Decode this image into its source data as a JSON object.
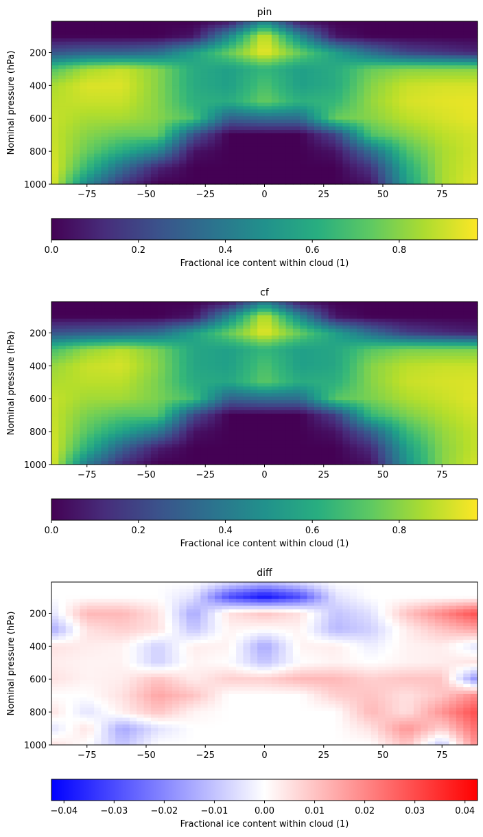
{
  "figure": {
    "chart_data": [
      {
        "type": "heatmap",
        "title": "pin",
        "xlabel": "",
        "ylabel": "Nominal pressure (hPa)",
        "xlim": [
          -90,
          90
        ],
        "ylim": [
          1000,
          10
        ],
        "y_inverted": true,
        "x_ticks": [
          -75,
          -50,
          -25,
          0,
          25,
          50,
          75
        ],
        "x_tick_labels": [
          "−75",
          "−50",
          "−25",
          "0",
          "25",
          "50",
          "75"
        ],
        "y_ticks": [
          200,
          400,
          600,
          800,
          1000
        ],
        "y_tick_labels": [
          "200",
          "400",
          "600",
          "800",
          "1000"
        ],
        "colormap": "viridis",
        "colorbar": {
          "label": "Fractional ice content within cloud (1)",
          "range": [
            0,
            0.98
          ],
          "ticks": [
            0.0,
            0.2,
            0.4,
            0.6,
            0.8
          ],
          "tick_labels": [
            "0.0",
            "0.2",
            "0.4",
            "0.6",
            "0.8"
          ],
          "orientation": "horizontal",
          "position": "bottom"
        },
        "x": [
          -90,
          -75,
          -60,
          -45,
          -30,
          -15,
          0,
          15,
          30,
          45,
          60,
          75,
          90
        ],
        "y": [
          10,
          100,
          200,
          300,
          400,
          500,
          600,
          700,
          800,
          900,
          1000
        ],
        "z": [
          [
            0.0,
            0.0,
            0.0,
            0.0,
            0.0,
            0.05,
            0.45,
            0.05,
            0.0,
            0.0,
            0.0,
            0.0,
            0.0
          ],
          [
            0.0,
            0.0,
            0.0,
            0.0,
            0.05,
            0.45,
            0.92,
            0.45,
            0.05,
            0.0,
            0.0,
            0.0,
            0.0
          ],
          [
            0.25,
            0.3,
            0.3,
            0.35,
            0.55,
            0.75,
            0.96,
            0.75,
            0.55,
            0.35,
            0.2,
            0.15,
            0.1
          ],
          [
            0.7,
            0.85,
            0.9,
            0.8,
            0.6,
            0.55,
            0.65,
            0.55,
            0.6,
            0.75,
            0.8,
            0.8,
            0.8
          ],
          [
            0.85,
            0.93,
            0.93,
            0.8,
            0.6,
            0.55,
            0.7,
            0.55,
            0.6,
            0.8,
            0.9,
            0.92,
            0.92
          ],
          [
            0.88,
            0.9,
            0.9,
            0.8,
            0.62,
            0.6,
            0.75,
            0.62,
            0.65,
            0.82,
            0.92,
            0.94,
            0.95
          ],
          [
            0.9,
            0.85,
            0.85,
            0.8,
            0.7,
            0.3,
            0.35,
            0.35,
            0.75,
            0.8,
            0.88,
            0.92,
            0.95
          ],
          [
            0.9,
            0.8,
            0.75,
            0.75,
            0.25,
            0.0,
            0.0,
            0.0,
            0.2,
            0.7,
            0.8,
            0.88,
            0.92
          ],
          [
            0.92,
            0.75,
            0.6,
            0.45,
            0.05,
            0.0,
            0.0,
            0.0,
            0.05,
            0.35,
            0.7,
            0.85,
            0.92
          ],
          [
            0.95,
            0.65,
            0.35,
            0.1,
            0.0,
            0.0,
            0.0,
            0.0,
            0.0,
            0.15,
            0.6,
            0.85,
            0.93
          ],
          [
            0.95,
            0.45,
            0.15,
            0.0,
            0.0,
            0.0,
            0.0,
            0.0,
            0.0,
            0.05,
            0.55,
            0.85,
            0.95
          ]
        ]
      },
      {
        "type": "heatmap",
        "title": "cf",
        "xlabel": "",
        "ylabel": "Nominal pressure (hPa)",
        "xlim": [
          -90,
          90
        ],
        "ylim": [
          1000,
          10
        ],
        "y_inverted": true,
        "x_ticks": [
          -75,
          -50,
          -25,
          0,
          25,
          50,
          75
        ],
        "x_tick_labels": [
          "−75",
          "−50",
          "−25",
          "0",
          "25",
          "50",
          "75"
        ],
        "y_ticks": [
          200,
          400,
          600,
          800,
          1000
        ],
        "y_tick_labels": [
          "200",
          "400",
          "600",
          "800",
          "1000"
        ],
        "colormap": "viridis",
        "colorbar": {
          "label": "Fractional ice content within cloud (1)",
          "range": [
            0,
            0.98
          ],
          "ticks": [
            0.0,
            0.2,
            0.4,
            0.6,
            0.8
          ],
          "tick_labels": [
            "0.0",
            "0.2",
            "0.4",
            "0.6",
            "0.8"
          ],
          "orientation": "horizontal",
          "position": "bottom"
        },
        "x": [
          -90,
          -75,
          -60,
          -45,
          -30,
          -15,
          0,
          15,
          30,
          45,
          60,
          75,
          90
        ],
        "y": [
          10,
          100,
          200,
          300,
          400,
          500,
          600,
          700,
          800,
          900,
          1000
        ],
        "z": [
          [
            0.0,
            0.0,
            0.0,
            0.0,
            0.0,
            0.05,
            0.4,
            0.05,
            0.0,
            0.0,
            0.0,
            0.0,
            0.0
          ],
          [
            0.0,
            0.0,
            0.0,
            0.0,
            0.05,
            0.45,
            0.9,
            0.45,
            0.05,
            0.0,
            0.0,
            0.0,
            0.0
          ],
          [
            0.25,
            0.28,
            0.3,
            0.35,
            0.55,
            0.75,
            0.95,
            0.75,
            0.55,
            0.35,
            0.18,
            0.12,
            0.08
          ],
          [
            0.68,
            0.82,
            0.88,
            0.78,
            0.58,
            0.55,
            0.65,
            0.55,
            0.58,
            0.72,
            0.78,
            0.78,
            0.78
          ],
          [
            0.82,
            0.9,
            0.92,
            0.8,
            0.58,
            0.55,
            0.7,
            0.55,
            0.58,
            0.8,
            0.88,
            0.9,
            0.9
          ],
          [
            0.86,
            0.88,
            0.88,
            0.78,
            0.6,
            0.58,
            0.73,
            0.6,
            0.62,
            0.8,
            0.9,
            0.92,
            0.93
          ],
          [
            0.9,
            0.84,
            0.84,
            0.78,
            0.68,
            0.3,
            0.35,
            0.35,
            0.72,
            0.78,
            0.86,
            0.9,
            0.94
          ],
          [
            0.9,
            0.78,
            0.72,
            0.72,
            0.22,
            0.0,
            0.0,
            0.0,
            0.18,
            0.65,
            0.78,
            0.86,
            0.92
          ],
          [
            0.92,
            0.72,
            0.56,
            0.4,
            0.05,
            0.0,
            0.0,
            0.0,
            0.05,
            0.3,
            0.66,
            0.82,
            0.9
          ],
          [
            0.94,
            0.62,
            0.3,
            0.08,
            0.0,
            0.0,
            0.0,
            0.0,
            0.0,
            0.12,
            0.55,
            0.8,
            0.9
          ],
          [
            0.95,
            0.4,
            0.12,
            0.0,
            0.0,
            0.0,
            0.0,
            0.0,
            0.0,
            0.04,
            0.5,
            0.8,
            0.92
          ]
        ]
      },
      {
        "type": "heatmap",
        "title": "diff",
        "xlabel": "",
        "ylabel": "Nominal pressure (hPa)",
        "xlim": [
          -90,
          90
        ],
        "ylim": [
          1000,
          10
        ],
        "y_inverted": true,
        "x_ticks": [
          -75,
          -50,
          -25,
          0,
          25,
          50,
          75
        ],
        "x_tick_labels": [
          "−75",
          "−50",
          "−25",
          "0",
          "25",
          "50",
          "75"
        ],
        "y_ticks": [
          200,
          400,
          600,
          800,
          1000
        ],
        "y_tick_labels": [
          "200",
          "400",
          "600",
          "800",
          "1000"
        ],
        "colormap": "bwr",
        "colorbar": {
          "label": "Fractional ice content within cloud (1)",
          "range": [
            -0.0425,
            0.0425
          ],
          "ticks": [
            -0.04,
            -0.03,
            -0.02,
            -0.01,
            0.0,
            0.01,
            0.02,
            0.03,
            0.04
          ],
          "tick_labels": [
            "−0.04",
            "−0.03",
            "−0.02",
            "−0.01",
            "0.00",
            "0.01",
            "0.02",
            "0.03",
            "0.04"
          ],
          "orientation": "horizontal",
          "position": "bottom"
        },
        "x": [
          -90,
          -75,
          -60,
          -45,
          -30,
          -15,
          0,
          15,
          30,
          45,
          60,
          75,
          90
        ],
        "y": [
          10,
          100,
          200,
          300,
          400,
          500,
          600,
          700,
          800,
          900,
          1000
        ],
        "z": [
          [
            0.0,
            0.0,
            0.0,
            0.0,
            0.0,
            -0.005,
            -0.01,
            -0.005,
            0.0,
            0.0,
            0.0,
            0.0,
            0.0
          ],
          [
            0.0,
            0.0,
            0.0,
            0.0,
            -0.005,
            -0.03,
            -0.04,
            -0.03,
            -0.005,
            0.0,
            0.0,
            0.0,
            0.0
          ],
          [
            -0.005,
            0.012,
            0.012,
            0.005,
            -0.015,
            0.005,
            0.01,
            0.005,
            -0.01,
            -0.005,
            0.01,
            0.02,
            0.03
          ],
          [
            -0.015,
            0.005,
            0.008,
            0.005,
            -0.01,
            0.002,
            0.0,
            0.002,
            -0.012,
            -0.008,
            0.003,
            0.01,
            0.015
          ],
          [
            0.005,
            0.003,
            0.002,
            -0.008,
            0.003,
            0.002,
            -0.015,
            0.002,
            0.003,
            -0.003,
            0.002,
            0.003,
            -0.005
          ],
          [
            0.003,
            0.002,
            0.002,
            -0.008,
            0.002,
            0.0,
            -0.01,
            0.0,
            0.002,
            0.0,
            0.002,
            0.003,
            0.005
          ],
          [
            0.005,
            0.002,
            0.003,
            0.01,
            0.003,
            0.008,
            0.008,
            0.012,
            0.012,
            0.008,
            0.01,
            0.01,
            -0.02
          ],
          [
            0.0,
            0.0,
            0.005,
            0.015,
            0.01,
            0.0,
            0.0,
            0.0,
            0.008,
            0.01,
            0.005,
            0.01,
            0.02
          ],
          [
            0.005,
            -0.005,
            0.003,
            0.01,
            0.002,
            0.0,
            0.0,
            0.0,
            0.0,
            0.012,
            0.005,
            0.018,
            0.03
          ],
          [
            -0.005,
            0.005,
            -0.015,
            -0.005,
            0.0,
            0.0,
            0.0,
            0.0,
            0.0,
            0.005,
            0.018,
            0.008,
            0.025
          ],
          [
            0.005,
            0.0,
            -0.01,
            0.0,
            0.0,
            0.0,
            0.0,
            0.0,
            0.0,
            0.0,
            0.01,
            -0.01,
            0.02
          ]
        ]
      }
    ]
  }
}
